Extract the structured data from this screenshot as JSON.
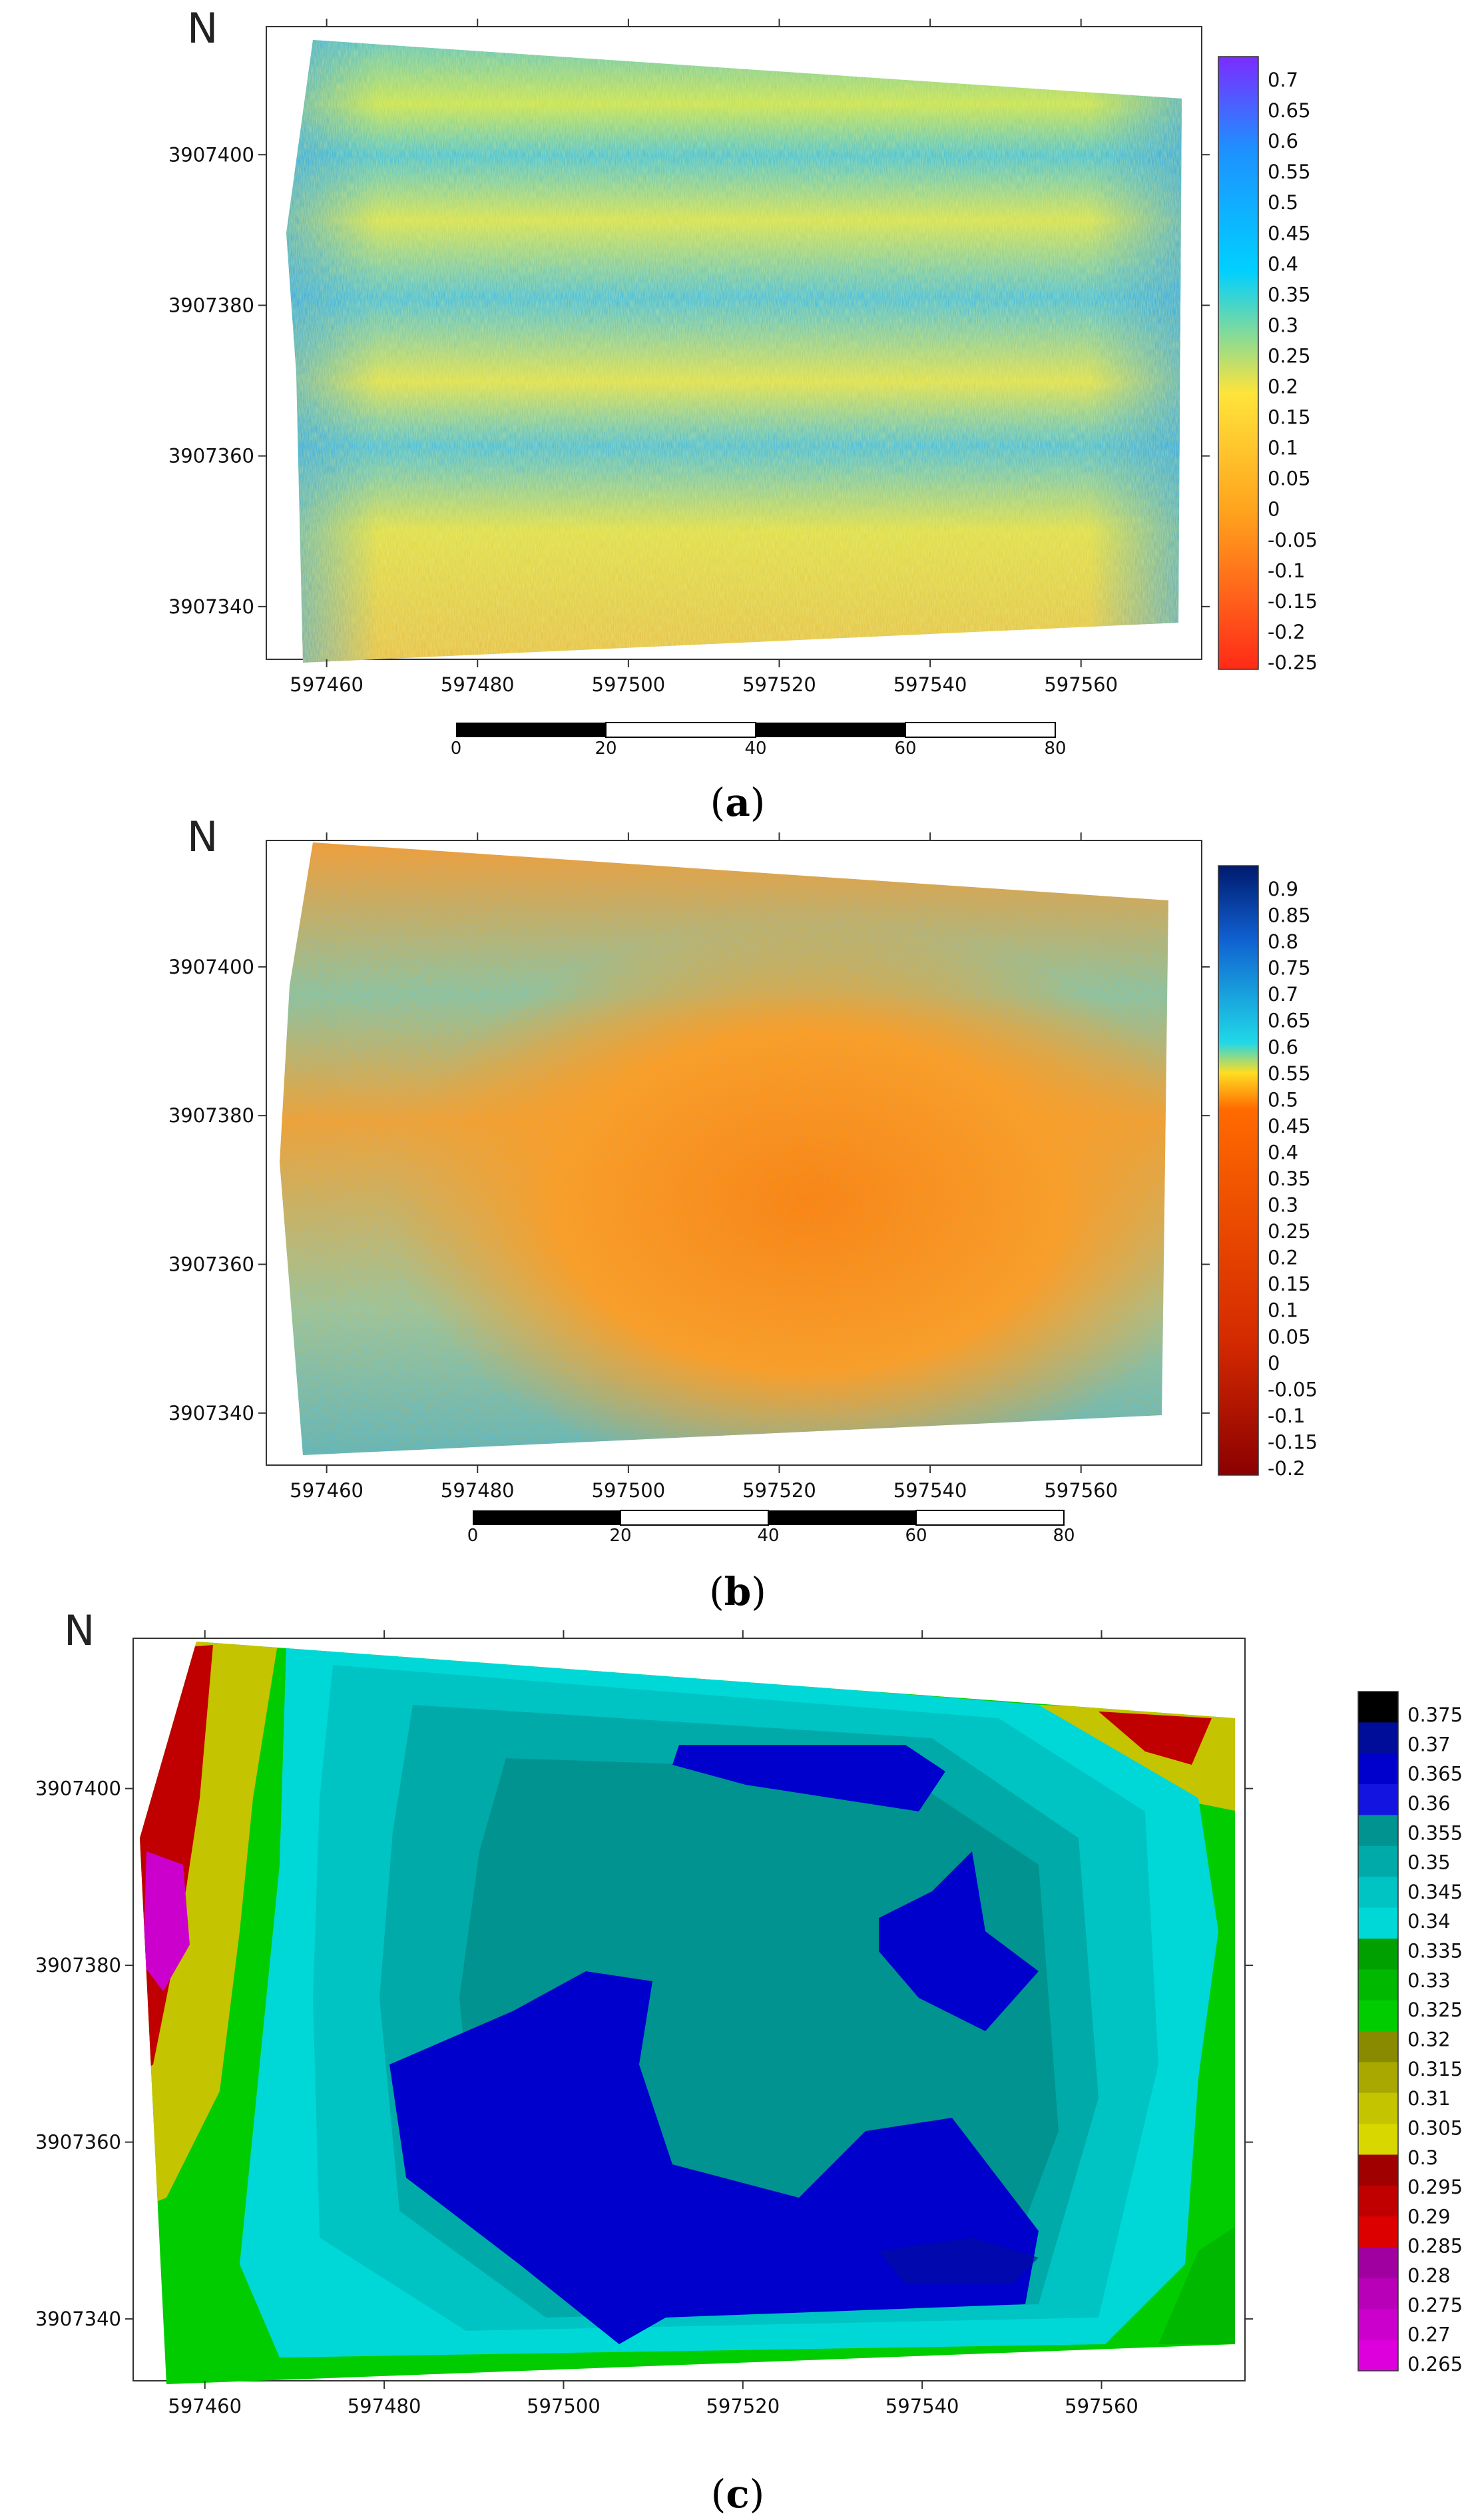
{
  "north_label": "N",
  "panels": [
    {
      "caption_open": "(",
      "caption_letter": "a",
      "caption_close": ")",
      "x_ticks": [
        "597460",
        "597480",
        "597500",
        "597520",
        "597540",
        "597560"
      ],
      "y_ticks": [
        "3907400",
        "3907380",
        "3907360",
        "3907340"
      ],
      "x_tick_values": [
        597460,
        597480,
        597500,
        597520,
        597540,
        597560
      ],
      "y_tick_values": [
        3907400,
        3907380,
        3907360,
        3907340
      ],
      "x_range": [
        597452,
        597576
      ],
      "y_range": [
        3907333,
        3907417
      ],
      "colorbar_labels": [
        "0.7",
        "0.65",
        "0.6",
        "0.55",
        "0.5",
        "0.45",
        "0.4",
        "0.35",
        "0.3",
        "0.25",
        "0.2",
        "0.15",
        "0.1",
        "0.05",
        "0",
        "-0.05",
        "-0.1",
        "-0.15",
        "-0.2",
        "-0.25"
      ],
      "colorbar_colors": [
        "#ff2a18",
        "#ffa01c",
        "#ffe43a",
        "#00d0ff",
        "#1e90ff",
        "#7b2cff"
      ],
      "scalebar_labels": [
        "0",
        "20",
        "40",
        "60",
        "80"
      ]
    },
    {
      "caption_open": "(",
      "caption_letter": "b",
      "caption_close": ")",
      "x_ticks": [
        "597460",
        "597480",
        "597500",
        "597520",
        "597540",
        "597560"
      ],
      "y_ticks": [
        "3907400",
        "3907380",
        "3907360",
        "3907340"
      ],
      "x_tick_values": [
        597460,
        597480,
        597500,
        597520,
        597540,
        597560
      ],
      "y_tick_values": [
        3907400,
        3907380,
        3907360,
        3907340
      ],
      "x_range": [
        597452,
        597576
      ],
      "y_range": [
        3907333,
        3907417
      ],
      "colorbar_labels": [
        "0.9",
        "0.85",
        "0.8",
        "0.75",
        "0.7",
        "0.65",
        "0.6",
        "0.55",
        "0.5",
        "0.45",
        "0.4",
        "0.35",
        "0.3",
        "0.25",
        "0.2",
        "0.15",
        "0.1",
        "0.05",
        "0",
        "-0.05",
        "-0.1",
        "-0.15",
        "-0.2"
      ],
      "colorbar_colors": [
        "#8b0000",
        "#d42a00",
        "#ff6a00",
        "#ffdd22",
        "#20d8e8",
        "#1060d0",
        "#001a6e"
      ],
      "scalebar_labels": [
        "0",
        "20",
        "40",
        "60",
        "80"
      ]
    },
    {
      "caption_open": "(",
      "caption_letter": "c",
      "caption_close": ")",
      "x_ticks": [
        "597460",
        "597480",
        "597500",
        "597520",
        "597540",
        "597560"
      ],
      "y_ticks": [
        "3907400",
        "3907380",
        "3907360",
        "3907340"
      ],
      "x_tick_values": [
        597460,
        597480,
        597500,
        597520,
        597540,
        597560
      ],
      "y_tick_values": [
        3907400,
        3907380,
        3907360,
        3907340
      ],
      "x_range": [
        597452,
        597576
      ],
      "y_range": [
        3907333,
        3907417
      ],
      "colorbar_labels": [
        "0.375",
        "0.37",
        "0.365",
        "0.36",
        "0.355",
        "0.35",
        "0.345",
        "0.34",
        "0.335",
        "0.33",
        "0.325",
        "0.32",
        "0.315",
        "0.31",
        "0.305",
        "0.3",
        "0.295",
        "0.29",
        "0.285",
        "0.28",
        "0.275",
        "0.27",
        "0.265"
      ],
      "colorbar_colors": [
        "#000000",
        "#000d99",
        "#0000cc",
        "#1414e0",
        "#00938f",
        "#00aaa8",
        "#00c4c4",
        "#00d8d8",
        "#00a000",
        "#00b800",
        "#00cc00",
        "#8a8a00",
        "#a8a800",
        "#c4c400",
        "#d8d800",
        "#a00000",
        "#c00000",
        "#dd0000",
        "#a000a0",
        "#b800b8",
        "#cc00cc",
        "#dd00dd"
      ],
      "scalebar_labels": []
    }
  ]
}
